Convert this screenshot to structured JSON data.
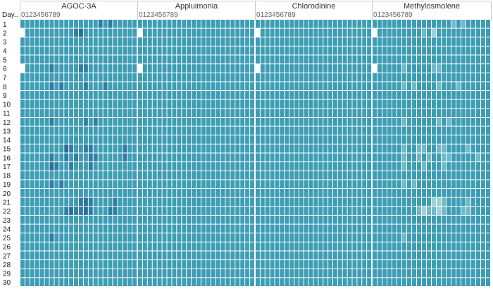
{
  "chart_data": {
    "type": "heatmap",
    "corner_label": "Day..",
    "row_labels": [
      "1",
      "2",
      "3",
      "4",
      "5",
      "6",
      "7",
      "8",
      "9",
      "10",
      "11",
      "12",
      "13",
      "14",
      "15",
      "16",
      "17",
      "18",
      "19",
      "20",
      "21",
      "22",
      "23",
      "24",
      "25",
      "26",
      "27",
      "28",
      "29",
      "30"
    ],
    "column_tick_label": "0123456789",
    "columns_per_panel": 24,
    "colors": {
      "base": "#3d9db4",
      "dark": "#2f7ea4",
      "darker": "#2a6e9b",
      "light": "#6fb9c9",
      "lighter": "#9fd0d8",
      "missing": "#ffffff",
      "gridline": "#ffffff"
    },
    "panels": [
      {
        "name": "AGOC-3A",
        "cells": {
          "1": {
            "16": "dark",
            "18": "dark"
          },
          "2": {
            "0": "missing",
            "11": "dark",
            "12": "darker"
          },
          "6": {
            "0": "missing",
            "6": "dark",
            "12": "dark",
            "13": "dark"
          },
          "8": {
            "6": "dark",
            "8": "dark",
            "13": "dark",
            "17": "dark"
          },
          "12": {
            "6": "dark",
            "13": "dark",
            "15": "dark"
          },
          "15": {
            "9": "darker",
            "10": "dark",
            "13": "dark",
            "14": "dark",
            "21": "dark"
          },
          "16": {
            "6": "dark",
            "9": "dark",
            "11": "dark",
            "14": "dark",
            "15": "dark",
            "21": "dark"
          },
          "17": {
            "6": "darker",
            "7": "dark",
            "10": "dark",
            "14": "dark"
          },
          "19": {
            "6": "dark",
            "8": "dark"
          },
          "21": {
            "12": "dark",
            "13": "darker",
            "14": "dark",
            "19": "dark"
          },
          "22": {
            "9": "dark",
            "10": "darker",
            "11": "dark",
            "12": "dark",
            "13": "darker",
            "14": "dark",
            "18": "dark",
            "19": "dark"
          },
          "25": {
            "6": "dark"
          }
        }
      },
      {
        "name": "Appluimonia",
        "cells": {
          "2": {
            "0": "missing"
          },
          "6": {
            "0": "missing"
          }
        }
      },
      {
        "name": "Chlorodinine",
        "cells": {
          "2": {
            "0": "missing"
          },
          "6": {
            "0": "missing"
          }
        }
      },
      {
        "name": "Methylosmolene",
        "cells": {
          "1": {
            "16": "light",
            "18": "light"
          },
          "2": {
            "0": "missing",
            "10": "light",
            "12": "lighter"
          },
          "6": {
            "0": "missing",
            "6": "light",
            "12": "light",
            "13": "light"
          },
          "8": {
            "6": "light",
            "8": "light",
            "13": "light",
            "17": "light"
          },
          "12": {
            "6": "light",
            "13": "light",
            "15": "light"
          },
          "15": {
            "6": "light",
            "9": "light",
            "10": "light",
            "13": "light",
            "14": "light",
            "19": "light"
          },
          "16": {
            "6": "light",
            "9": "light",
            "11": "light",
            "14": "light",
            "15": "light",
            "21": "light"
          },
          "17": {
            "6": "light",
            "10": "light",
            "14": "light"
          },
          "19": {
            "6": "light",
            "8": "light"
          },
          "21": {
            "12": "lighter",
            "13": "lighter",
            "14": "light",
            "19": "light"
          },
          "22": {
            "9": "light",
            "10": "lighter",
            "11": "light",
            "12": "light",
            "13": "lighter",
            "14": "light",
            "18": "light",
            "19": "light"
          },
          "25": {
            "6": "light"
          }
        }
      }
    ]
  }
}
